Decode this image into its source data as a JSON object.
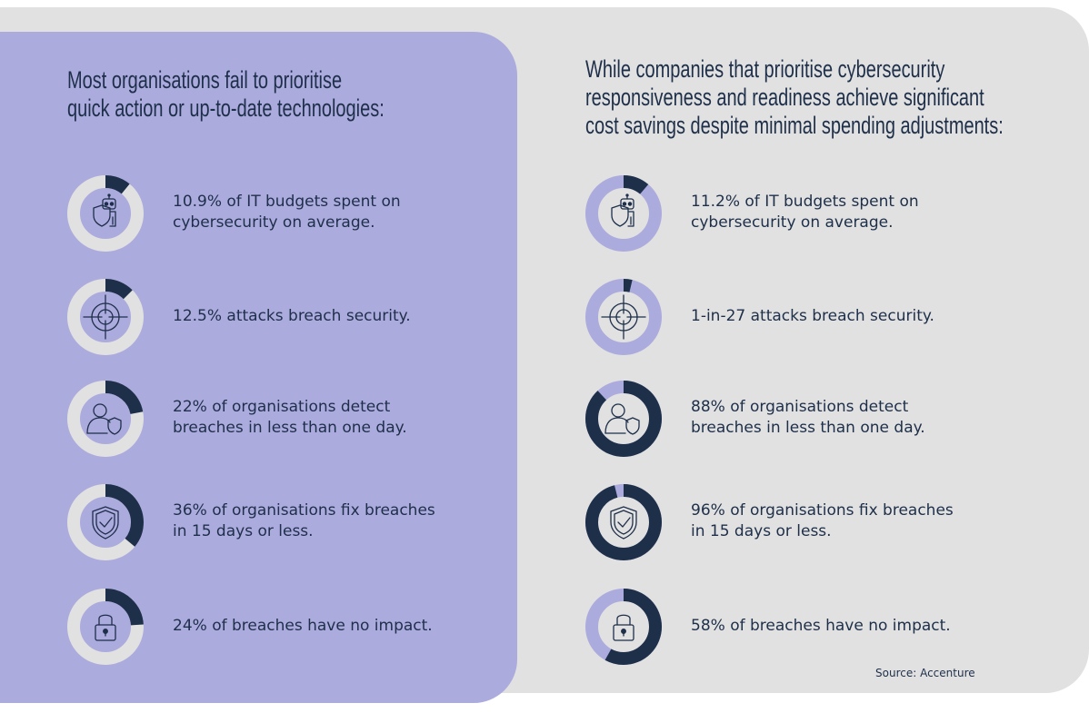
{
  "colors": {
    "navy": "#1e2f4a",
    "lavender": "#acabde",
    "light_grey": "#e1e1e1",
    "background": "#ffffff"
  },
  "left_panel": {
    "heading_lines": [
      "Most organisations fail to prioritise",
      "quick action or up-to-date technologies:"
    ]
  },
  "right_panel": {
    "heading_lines": [
      "While companies that prioritise cybersecurity",
      "responsiveness and readiness achieve significant",
      "cost savings despite minimal spending adjustments:"
    ]
  },
  "source": "Source: Accenture",
  "chart_data": [
    {
      "type": "pie",
      "panel": "left",
      "items": [
        {
          "icon": "robot-shield-icon",
          "value_percent": 10.9,
          "text_lines": [
            "10.9% of IT budgets spent on",
            "cybersecurity on average."
          ]
        },
        {
          "icon": "crosshair-icon",
          "value_percent": 12.5,
          "text_lines": [
            "12.5% attacks breach security."
          ]
        },
        {
          "icon": "user-shield-icon",
          "value_percent": 22,
          "text_lines": [
            "22% of organisations detect",
            "breaches in less than one day."
          ]
        },
        {
          "icon": "shield-check-icon",
          "value_percent": 36,
          "text_lines": [
            "36% of organisations fix breaches",
            "in 15 days or less."
          ]
        },
        {
          "icon": "padlock-icon",
          "value_percent": 24,
          "text_lines": [
            "24% of breaches have no impact."
          ]
        }
      ]
    },
    {
      "type": "pie",
      "panel": "right",
      "items": [
        {
          "icon": "robot-shield-icon",
          "value_percent": 11.2,
          "text_lines": [
            "11.2% of IT budgets spent on",
            "cybersecurity on average."
          ]
        },
        {
          "icon": "crosshair-icon",
          "value_percent": 3.7,
          "text_lines": [
            "1-in-27 attacks breach security."
          ]
        },
        {
          "icon": "user-shield-icon",
          "value_percent": 88,
          "text_lines": [
            "88% of organisations detect",
            "breaches in less than one day."
          ]
        },
        {
          "icon": "shield-check-icon",
          "value_percent": 96,
          "text_lines": [
            "96% of organisations fix breaches",
            "in 15 days or less."
          ]
        },
        {
          "icon": "padlock-icon",
          "value_percent": 58,
          "text_lines": [
            "58% of breaches have no impact."
          ]
        }
      ]
    }
  ]
}
